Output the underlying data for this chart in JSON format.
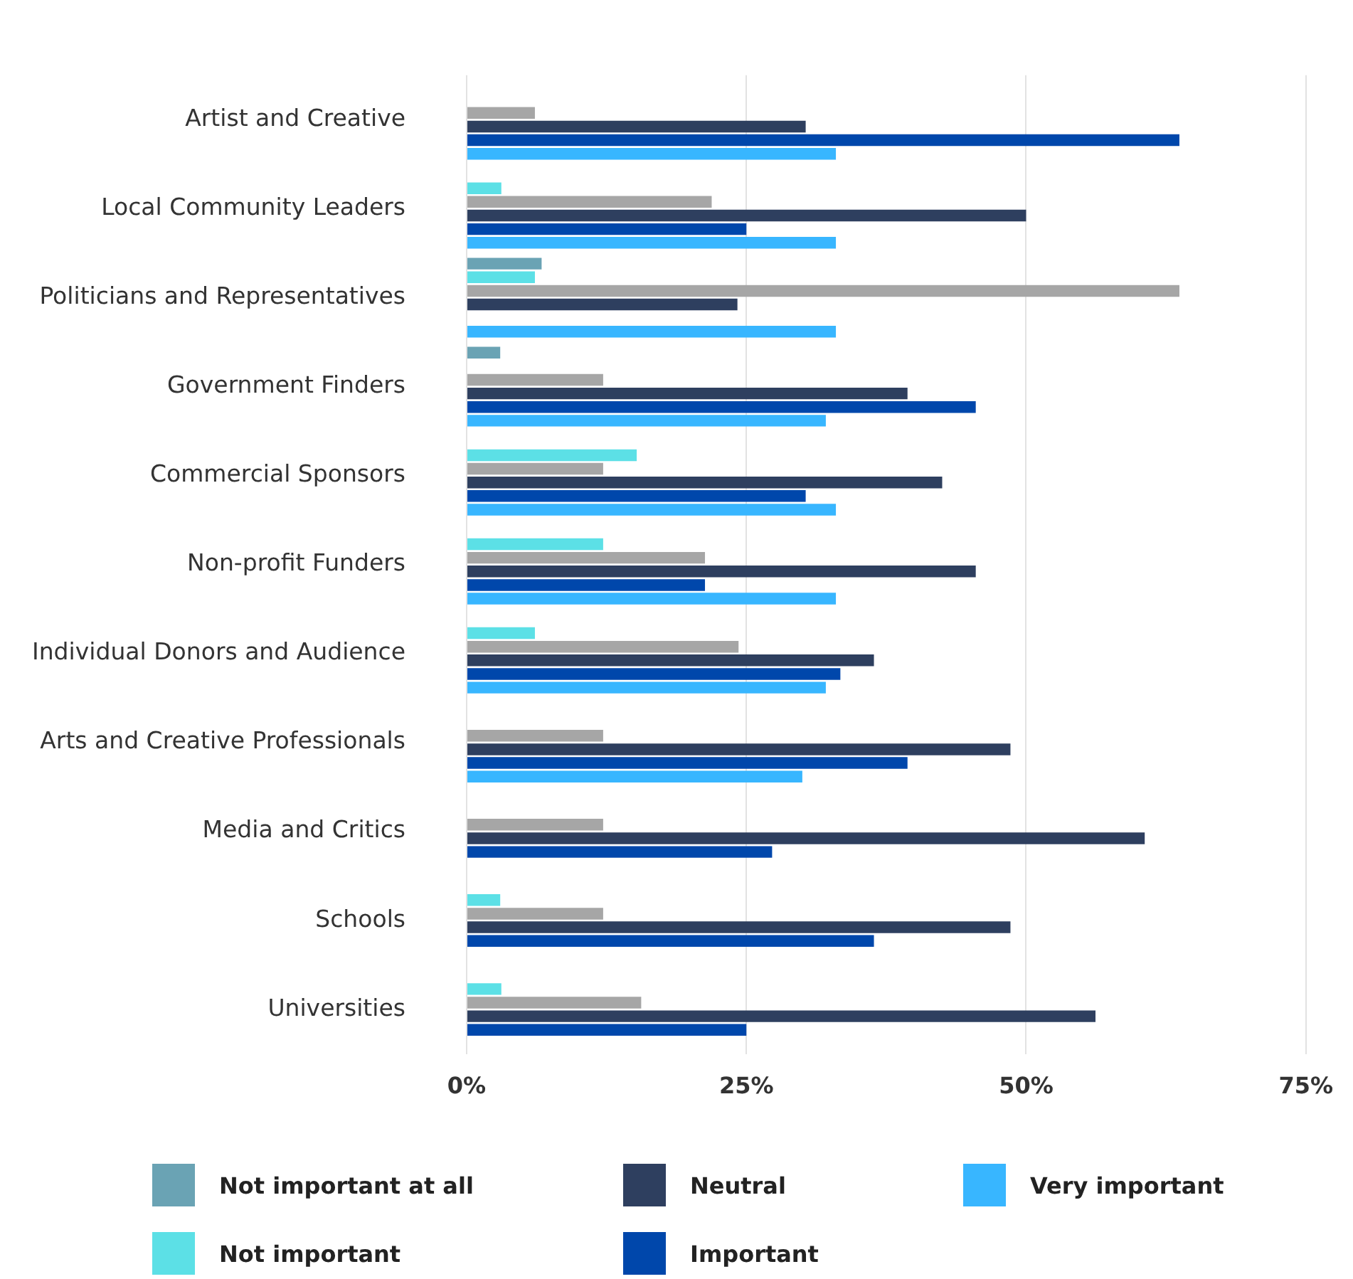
{
  "chart_data": {
    "type": "bar",
    "orientation": "horizontal",
    "categories": [
      "Artist and Creative",
      "Local Community Leaders",
      "Politicians and Representatives",
      "Government Finders",
      "Commercial Sponsors",
      "Non-profit Funders",
      "Individual Donors and Audience",
      "Arts and Creative Professionals",
      "Media and Critics",
      "Schools",
      "Universities"
    ],
    "series": [
      {
        "name": "Not important at all",
        "color": "#6aa3b4",
        "values": [
          null,
          null,
          6.7,
          3.0,
          null,
          null,
          null,
          null,
          null,
          null,
          null
        ]
      },
      {
        "name": "Not important",
        "color": "#5ce0e6",
        "values": [
          null,
          3.1,
          6.1,
          null,
          15.2,
          12.2,
          6.1,
          null,
          null,
          3.0,
          3.1
        ]
      },
      {
        "color": "#a6a6a6",
        "values": [
          6.1,
          21.9,
          63.7,
          12.2,
          12.2,
          21.3,
          24.3,
          12.2,
          12.2,
          12.2,
          15.6
        ]
      },
      {
        "name": "Neutral",
        "color": "#2e3f5f",
        "values": [
          30.3,
          50.0,
          24.2,
          39.4,
          42.5,
          45.5,
          36.4,
          48.6,
          60.6,
          48.6,
          56.2
        ]
      },
      {
        "name": "Important",
        "color": "#0047ab",
        "values": [
          63.7,
          25.0,
          null,
          45.5,
          30.3,
          21.3,
          33.4,
          39.4,
          27.3,
          36.4,
          25.0
        ]
      },
      {
        "name": "Very important",
        "color": "#38b6ff",
        "values": [
          33.0,
          33.0,
          33.0,
          32.1,
          33.0,
          33.0,
          32.1,
          30.0,
          null,
          null,
          null
        ]
      }
    ],
    "xlim": [
      0,
      75
    ],
    "xticks": [
      {
        "value": 0,
        "label": "0%"
      },
      {
        "value": 25,
        "label": "25%"
      },
      {
        "value": 50,
        "label": "50%"
      },
      {
        "value": 75,
        "label": "75%"
      }
    ],
    "grid": "x",
    "legend": "bottom"
  }
}
